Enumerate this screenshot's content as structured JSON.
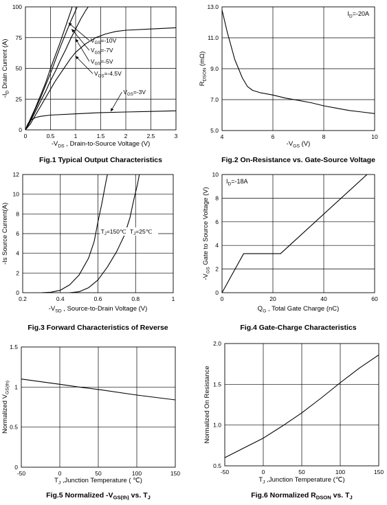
{
  "chart_data": [
    {
      "type": "line",
      "title": "Fig.1 Typical Output Characteristics",
      "xlabel": "-V_DS , Drain-to-Source Voltage (V)",
      "ylabel": "-I_D Drain Current (A)",
      "xlim": [
        0,
        3
      ],
      "ylim": [
        0,
        100
      ],
      "xticks": [
        0,
        0.5,
        1,
        1.5,
        2,
        2.5,
        3
      ],
      "xtick_labels": [
        "0",
        "0.5",
        "1",
        "1.5",
        "2",
        "2.5",
        "3"
      ],
      "yticks": [
        0,
        25,
        50,
        75,
        100
      ],
      "ytick_labels": [
        "0",
        "25",
        "50",
        "75",
        "100"
      ],
      "grid": true,
      "series": [
        {
          "name": "V_GS=-10V",
          "points": [
            [
              0,
              0
            ],
            [
              0.1,
              9
            ],
            [
              0.2,
              18
            ],
            [
              0.3,
              28
            ],
            [
              0.4,
              38
            ],
            [
              0.5,
              50
            ],
            [
              0.6,
              61
            ],
            [
              0.7,
              72
            ],
            [
              0.8,
              84
            ],
            [
              0.9,
              96
            ],
            [
              0.93,
              100
            ]
          ]
        },
        {
          "name": "V_GS=-7V",
          "points": [
            [
              0,
              0
            ],
            [
              0.1,
              8
            ],
            [
              0.2,
              17
            ],
            [
              0.3,
              26
            ],
            [
              0.4,
              36
            ],
            [
              0.5,
              46
            ],
            [
              0.6,
              57
            ],
            [
              0.7,
              68
            ],
            [
              0.8,
              78
            ],
            [
              0.9,
              88
            ],
            [
              1.0,
              97
            ],
            [
              1.03,
              100
            ]
          ]
        },
        {
          "name": "V_GS=-5V",
          "points": [
            [
              0,
              0
            ],
            [
              0.1,
              7
            ],
            [
              0.2,
              15
            ],
            [
              0.3,
              23
            ],
            [
              0.4,
              31
            ],
            [
              0.5,
              40
            ],
            [
              0.6,
              48
            ],
            [
              0.7,
              57
            ],
            [
              0.8,
              65
            ],
            [
              0.9,
              74
            ],
            [
              1.0,
              82
            ],
            [
              1.1,
              90
            ],
            [
              1.2,
              97
            ],
            [
              1.25,
              100
            ]
          ]
        },
        {
          "name": "V_GS=-4.5V",
          "points": [
            [
              0,
              0
            ],
            [
              0.1,
              5
            ],
            [
              0.2,
              12
            ],
            [
              0.3,
              19
            ],
            [
              0.4,
              26
            ],
            [
              0.5,
              33
            ],
            [
              0.6,
              40
            ],
            [
              0.7,
              46
            ],
            [
              0.8,
              52
            ],
            [
              0.9,
              58
            ],
            [
              1.0,
              63
            ],
            [
              1.2,
              70
            ],
            [
              1.4,
              75
            ],
            [
              1.6,
              78
            ],
            [
              1.8,
              80
            ],
            [
              2.0,
              81
            ],
            [
              2.5,
              82
            ],
            [
              3.0,
              83
            ]
          ]
        },
        {
          "name": "V_GS=-3V",
          "points": [
            [
              0,
              0
            ],
            [
              0.05,
              5
            ],
            [
              0.1,
              8
            ],
            [
              0.2,
              10
            ],
            [
              0.3,
              11
            ],
            [
              0.5,
              12
            ],
            [
              1.0,
              13
            ],
            [
              1.5,
              14
            ],
            [
              2.0,
              14.5
            ],
            [
              2.5,
              15
            ],
            [
              3.0,
              15.5
            ]
          ]
        }
      ],
      "legend": [
        {
          "text": "V_GS=-10V",
          "at": [
            1.3,
            71
          ],
          "arrow_to": [
            0.86,
            87
          ]
        },
        {
          "text": "V_GS=-7V",
          "at": [
            1.3,
            63
          ],
          "arrow_to": [
            0.92,
            82
          ]
        },
        {
          "text": "V_GS=-5V",
          "at": [
            1.3,
            54
          ],
          "arrow_to": [
            1.0,
            74
          ]
        },
        {
          "text": "V_GS=-4.5V",
          "at": [
            1.37,
            44
          ],
          "arrow_to": [
            1.0,
            60
          ]
        },
        {
          "text": "V_GS=-3V",
          "at": [
            1.95,
            29
          ],
          "arrow_to": [
            1.7,
            15
          ]
        }
      ]
    },
    {
      "type": "line",
      "title": "Fig.2 On-Resistance vs. Gate-Source Voltage",
      "xlabel": "-V_GS (V)",
      "ylabel": "R_DSON (mΩ)",
      "xlim": [
        4,
        10
      ],
      "ylim": [
        5.0,
        13.0
      ],
      "xticks": [
        4,
        6,
        8,
        10
      ],
      "xtick_labels": [
        "4",
        "6",
        "8",
        "10"
      ],
      "yticks": [
        5,
        7,
        9,
        11,
        13
      ],
      "ytick_labels": [
        "5.0",
        "7.0",
        "9.0",
        "11.0",
        "13.0"
      ],
      "grid": true,
      "annotation": "I_D=-20A",
      "series": [
        {
          "name": "",
          "points": [
            [
              4.0,
              12.8
            ],
            [
              4.2,
              11.4
            ],
            [
              4.5,
              9.6
            ],
            [
              4.8,
              8.4
            ],
            [
              5.0,
              7.85
            ],
            [
              5.2,
              7.6
            ],
            [
              5.5,
              7.45
            ],
            [
              6.0,
              7.3
            ],
            [
              6.5,
              7.1
            ],
            [
              7.0,
              6.95
            ],
            [
              7.5,
              6.8
            ],
            [
              8.0,
              6.6
            ],
            [
              8.5,
              6.45
            ],
            [
              9.0,
              6.3
            ],
            [
              9.5,
              6.2
            ],
            [
              10.0,
              6.1
            ]
          ]
        }
      ]
    },
    {
      "type": "line",
      "title": "Fig.3 Forward Characteristics of Reverse",
      "xlabel": "-V_SD , Source-to-Drain Voltage (V)",
      "ylabel": "-Is Source Current(A)",
      "xlim": [
        0.2,
        1.0
      ],
      "ylim": [
        0,
        12
      ],
      "xticks": [
        0.2,
        0.4,
        0.6,
        0.8,
        1.0
      ],
      "xtick_labels": [
        "0.2",
        "0.4",
        "0.6",
        "0.8",
        "1"
      ],
      "yticks": [
        0,
        2,
        4,
        6,
        8,
        10,
        12
      ],
      "ytick_labels": [
        "0",
        "2",
        "4",
        "6",
        "8",
        "10",
        "12"
      ],
      "grid": true,
      "series": [
        {
          "name": "T_J=150℃",
          "points": [
            [
              0.3,
              0
            ],
            [
              0.35,
              0.05
            ],
            [
              0.4,
              0.25
            ],
            [
              0.45,
              0.8
            ],
            [
              0.5,
              1.8
            ],
            [
              0.55,
              3.5
            ],
            [
              0.58,
              5.2
            ],
            [
              0.6,
              7.2
            ],
            [
              0.62,
              9.0
            ],
            [
              0.64,
              11
            ],
            [
              0.65,
              12
            ]
          ]
        },
        {
          "name": "T_J=25℃",
          "points": [
            [
              0.45,
              0
            ],
            [
              0.5,
              0.1
            ],
            [
              0.55,
              0.5
            ],
            [
              0.6,
              1.3
            ],
            [
              0.65,
              2.6
            ],
            [
              0.7,
              4.2
            ],
            [
              0.74,
              5.8
            ],
            [
              0.77,
              7.6
            ],
            [
              0.79,
              9.4
            ],
            [
              0.81,
              11
            ],
            [
              0.82,
              12
            ]
          ]
        }
      ],
      "legend": [
        {
          "text": "T_J=150℃",
          "at": [
            0.615,
            6.0
          ]
        },
        {
          "text": "T_J=25℃",
          "at": [
            0.77,
            6.0
          ]
        }
      ]
    },
    {
      "type": "line",
      "title": "Fig.4 Gate-Charge Characteristics",
      "xlabel": "Q_G , Total Gate Charge (nC)",
      "ylabel": "-V_GS Gate to Source Voltage (V)",
      "xlim": [
        0,
        60
      ],
      "ylim": [
        0,
        10
      ],
      "xticks": [
        0,
        20,
        40,
        60
      ],
      "xtick_labels": [
        "0",
        "20",
        "40",
        "60"
      ],
      "yticks": [
        0,
        2,
        4,
        6,
        8,
        10
      ],
      "ytick_labels": [
        "0",
        "2",
        "4",
        "6",
        "8",
        "10"
      ],
      "grid": true,
      "annotation": "I_D=-18A",
      "series": [
        {
          "name": "",
          "points": [
            [
              0,
              0
            ],
            [
              8.5,
              3.3
            ],
            [
              23,
              3.3
            ],
            [
              57,
              10
            ]
          ]
        }
      ]
    },
    {
      "type": "line",
      "title": "Fig.5 Normalized -V_GS(th) vs. T_J",
      "xlabel": "T_J ,Junction Temperature ( ℃)",
      "ylabel": "Normalized V_GS(th)",
      "xlim": [
        -50,
        150
      ],
      "ylim": [
        0,
        1.5
      ],
      "xticks": [
        -50,
        0,
        50,
        100,
        150
      ],
      "xtick_labels": [
        "-50",
        "0",
        "50",
        "100",
        "150"
      ],
      "yticks": [
        0,
        0.5,
        1,
        1.5
      ],
      "ytick_labels": [
        "0",
        "0.5",
        "1",
        "1.5"
      ],
      "grid": true,
      "series": [
        {
          "name": "",
          "points": [
            [
              -50,
              1.1
            ],
            [
              0,
              1.035
            ],
            [
              25,
              1.0
            ],
            [
              50,
              0.97
            ],
            [
              100,
              0.9
            ],
            [
              150,
              0.84
            ]
          ]
        }
      ]
    },
    {
      "type": "line",
      "title": "Fig.6 Normalized R_DSON vs. T_J",
      "xlabel": "T_J ,Junction Temperature (℃)",
      "ylabel": "Normalized On Resistance",
      "xlim": [
        -50,
        150
      ],
      "ylim": [
        0.5,
        2.0
      ],
      "xticks": [
        -50,
        0,
        50,
        100,
        150
      ],
      "xtick_labels": [
        "-50",
        "0",
        "50",
        "100",
        "150"
      ],
      "yticks": [
        0.5,
        1.0,
        1.5,
        2.0
      ],
      "ytick_labels": [
        "0.5",
        "1.0",
        "1.5",
        "2.0"
      ],
      "grid": true,
      "series": [
        {
          "name": "",
          "points": [
            [
              -50,
              0.6
            ],
            [
              -25,
              0.72
            ],
            [
              0,
              0.84
            ],
            [
              25,
              0.99
            ],
            [
              50,
              1.15
            ],
            [
              75,
              1.33
            ],
            [
              100,
              1.52
            ],
            [
              125,
              1.7
            ],
            [
              150,
              1.86
            ]
          ]
        }
      ]
    }
  ]
}
